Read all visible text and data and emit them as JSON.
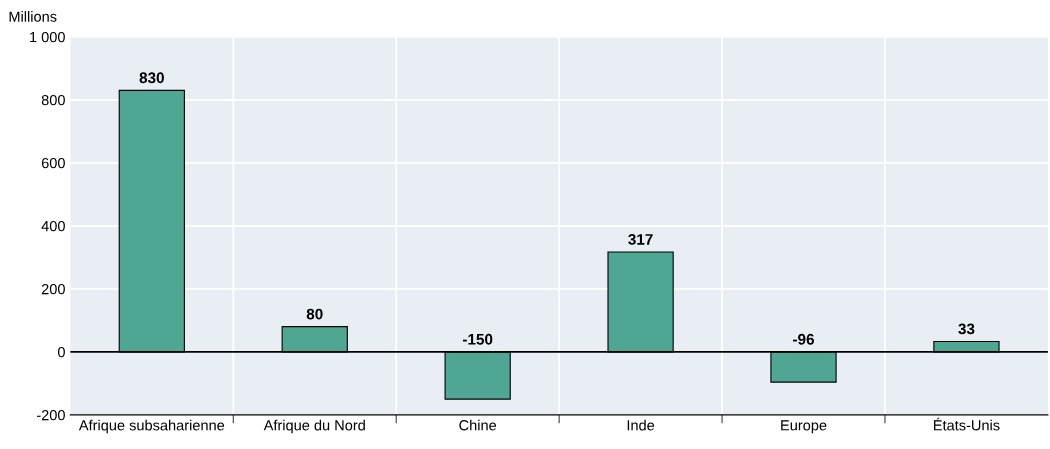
{
  "chart_data": {
    "type": "bar",
    "ylabel": "Millions",
    "categories": [
      "Afrique subsaharienne",
      "Afrique du Nord",
      "Chine",
      "Inde",
      "Europe",
      "États-Unis"
    ],
    "values": [
      830,
      80,
      -150,
      317,
      -96,
      33
    ],
    "color": "#4fa693",
    "ylim": [
      -200,
      1000
    ],
    "yticks": [
      -200,
      0,
      200,
      400,
      600,
      800,
      {
        "value": 1000,
        "label": "1 000"
      }
    ],
    "ref_lines": [
      {
        "axis": "y",
        "value": 0,
        "color": "#000000"
      }
    ],
    "data_labels": true,
    "grid": true
  }
}
